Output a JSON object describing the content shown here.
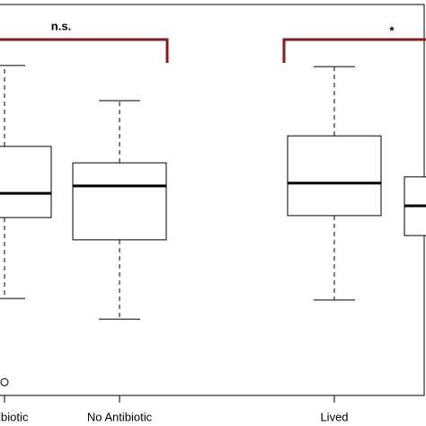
{
  "chart_data": {
    "type": "box",
    "categories": [
      "Antibiotic",
      "No Antibiotic",
      "Lived",
      null
    ],
    "annotations": [
      "n.s.",
      "*"
    ],
    "ylim": [
      0,
      100
    ],
    "color": "#000000",
    "bracket_color": "#8b1a1a",
    "boxes": [
      {
        "whisker_low": 24.8,
        "q1": 45.5,
        "median": 51.7,
        "q3": 63.7,
        "whisker_high": 84.4,
        "outliers": [
          3.4
        ]
      },
      {
        "whisker_low": 19.5,
        "q1": 39.8,
        "median": 53.6,
        "q3": 59.5,
        "whisker_high": 75.4,
        "outliers": []
      },
      {
        "whisker_low": 24.4,
        "q1": 46.0,
        "median": 54.3,
        "q3": 66.4,
        "whisker_high": 84.1,
        "outliers": []
      },
      {
        "whisker_low": null,
        "q1": 40.9,
        "median": 48.5,
        "q3": 55.9,
        "whisker_high": null,
        "outliers": []
      }
    ]
  }
}
